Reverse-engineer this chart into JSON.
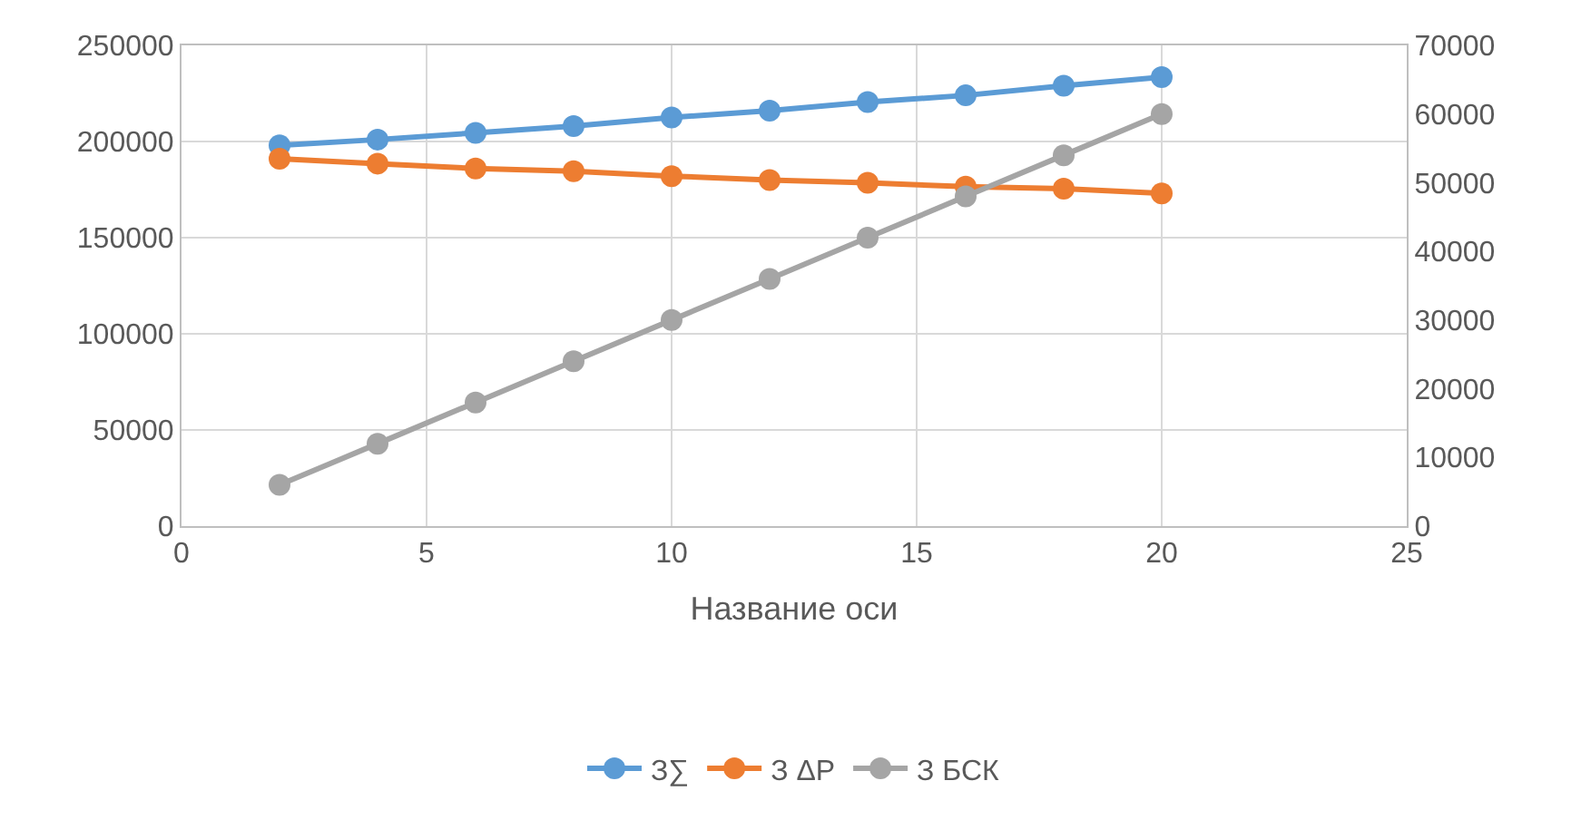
{
  "chart_data": {
    "type": "line",
    "xlabel": "Название оси",
    "x": [
      2,
      4,
      6,
      8,
      10,
      12,
      14,
      16,
      18,
      20
    ],
    "series": [
      {
        "name": "З∑",
        "color": "#5b9bd5",
        "values": [
          198000,
          201000,
          204500,
          208000,
          212500,
          216000,
          220500,
          224000,
          229000,
          233500
        ]
      },
      {
        "name": "З ΔР",
        "color": "#ed7d31",
        "values": [
          191000,
          188500,
          186000,
          184500,
          182000,
          180000,
          178500,
          176500,
          175500,
          173000
        ]
      },
      {
        "name": "З БСК",
        "color": "#a5a5a5",
        "axis": "y2",
        "values": [
          6000,
          12000,
          18000,
          24000,
          30000,
          36000,
          42000,
          48000,
          54000,
          60000
        ]
      }
    ],
    "xlim": [
      0,
      25
    ],
    "xticks": [
      0,
      5,
      10,
      15,
      20,
      25
    ],
    "ylim": [
      0,
      250000
    ],
    "yticks": [
      0,
      50000,
      100000,
      150000,
      200000,
      250000
    ],
    "y2lim": [
      0,
      70000
    ],
    "y2ticks": [
      0,
      10000,
      20000,
      30000,
      40000,
      50000,
      60000,
      70000
    ],
    "grid": true,
    "legend": "bottom",
    "marker": "circle",
    "line_style": "solid"
  }
}
